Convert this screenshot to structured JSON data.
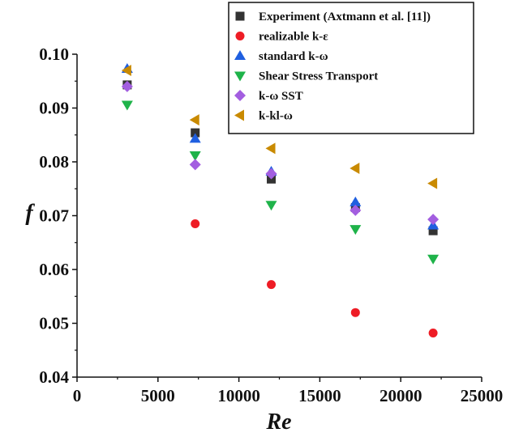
{
  "chart_data": {
    "type": "scatter",
    "xlabel": "Re",
    "ylabel": "f",
    "xlim": [
      0,
      25000
    ],
    "ylim": [
      0.04,
      0.1
    ],
    "xticks": [
      0,
      5000,
      10000,
      15000,
      20000,
      25000
    ],
    "xtick_labels": [
      "0",
      "5000",
      "10000",
      "15000",
      "20000",
      "25000"
    ],
    "yticks": [
      0.04,
      0.05,
      0.06,
      0.07,
      0.08,
      0.09,
      0.1
    ],
    "ytick_labels": [
      "0.04",
      "0.05",
      "0.06",
      "0.07",
      "0.08",
      "0.09",
      "0.10"
    ],
    "grid": false,
    "legend_position": "top-right",
    "series": [
      {
        "name": "Experiment (Axtmann et al. [11])",
        "marker": "square",
        "color": "#333333",
        "points": [
          [
            3100,
            0.0943
          ],
          [
            7300,
            0.0854
          ],
          [
            12000,
            0.0768
          ],
          [
            17200,
            0.0715
          ],
          [
            22000,
            0.0672
          ]
        ]
      },
      {
        "name": "realizable k-ε",
        "marker": "circle",
        "color": "#ee1c25",
        "points": [
          [
            7300,
            0.0685
          ],
          [
            12000,
            0.0572
          ],
          [
            17200,
            0.052
          ],
          [
            22000,
            0.0482
          ]
        ]
      },
      {
        "name": "standard k-ω",
        "marker": "triangle-up",
        "color": "#1f5fe0",
        "points": [
          [
            3100,
            0.0973
          ],
          [
            7300,
            0.0843
          ],
          [
            12000,
            0.0782
          ],
          [
            17200,
            0.0725
          ],
          [
            22000,
            0.0682
          ]
        ]
      },
      {
        "name": "Shear Stress Transport",
        "marker": "triangle-down",
        "color": "#1fb34a",
        "points": [
          [
            3100,
            0.0906
          ],
          [
            7300,
            0.0812
          ],
          [
            12000,
            0.072
          ],
          [
            17200,
            0.0675
          ],
          [
            22000,
            0.062
          ]
        ]
      },
      {
        "name": "k-ω SST",
        "marker": "diamond",
        "color": "#a35ee0",
        "points": [
          [
            3100,
            0.094
          ],
          [
            7300,
            0.0795
          ],
          [
            12000,
            0.0778
          ],
          [
            17200,
            0.071
          ],
          [
            22000,
            0.0693
          ]
        ]
      },
      {
        "name": "k-kl-ω",
        "marker": "triangle-left",
        "color": "#c98a00",
        "points": [
          [
            3100,
            0.097
          ],
          [
            7300,
            0.0878
          ],
          [
            12000,
            0.0825
          ],
          [
            17200,
            0.0788
          ],
          [
            22000,
            0.076
          ]
        ]
      }
    ]
  }
}
